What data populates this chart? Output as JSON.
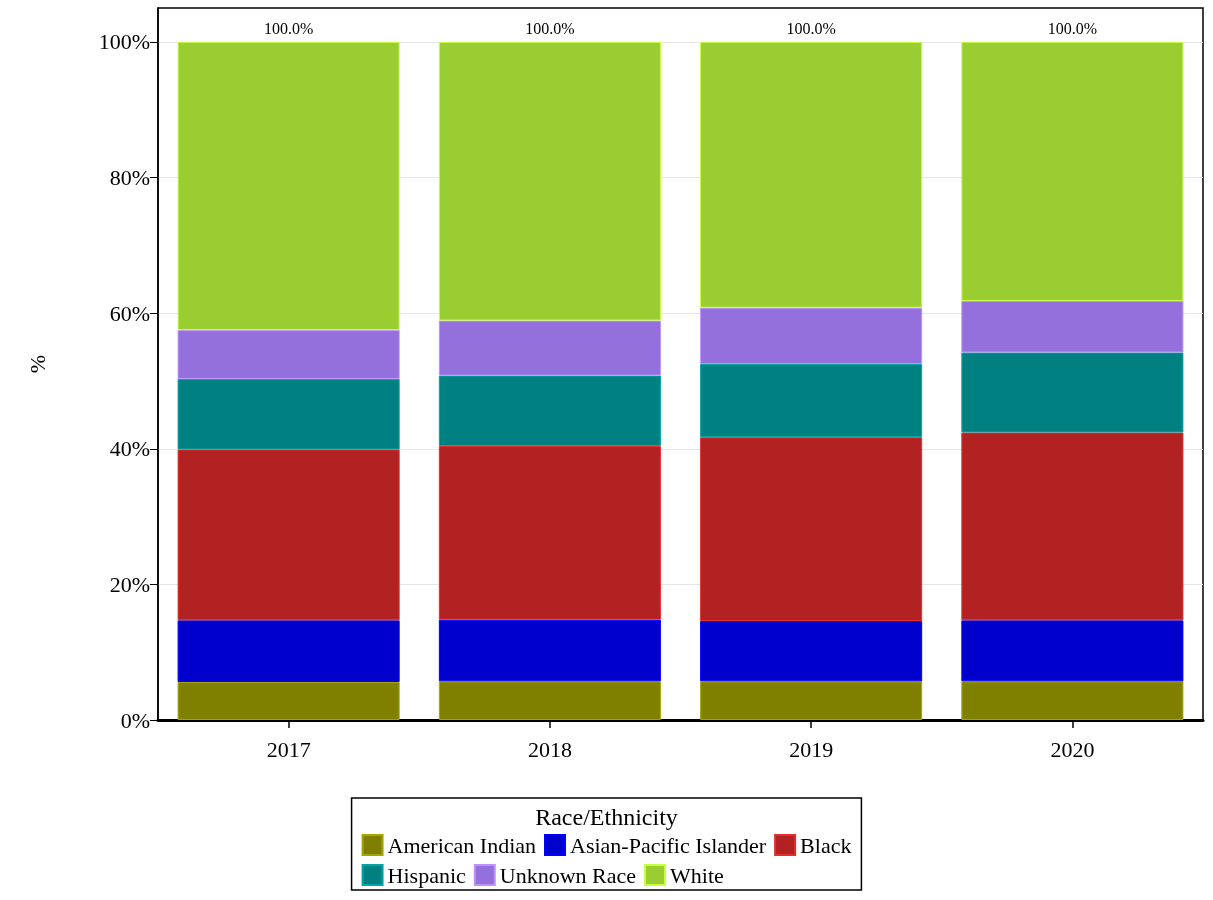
{
  "chart_data": {
    "type": "bar",
    "stacked": true,
    "ylabel": "%",
    "legend_title": "Race/Ethnicity",
    "legend": "bottom",
    "grid": "y",
    "categories": [
      "2017",
      "2018",
      "2019",
      "2020"
    ],
    "series": [
      {
        "name": "American Indian",
        "color": "#808000",
        "values": [
          5.6,
          5.7,
          5.7,
          5.7
        ]
      },
      {
        "name": "Asian-Pacific Islander",
        "color": "#0000cd",
        "values": [
          9.1,
          9.1,
          8.9,
          9.0
        ]
      },
      {
        "name": "Black",
        "color": "#b22222",
        "values": [
          25.2,
          25.6,
          27.1,
          27.7
        ]
      },
      {
        "name": "Hispanic",
        "color": "#008080",
        "values": [
          10.4,
          10.4,
          10.8,
          11.8
        ]
      },
      {
        "name": "Unknown Race",
        "color": "#9370db",
        "values": [
          7.2,
          8.1,
          8.3,
          7.6
        ]
      },
      {
        "name": "White",
        "color": "#9acd32",
        "values": [
          42.5,
          41.1,
          39.2,
          38.2
        ]
      }
    ],
    "totals": [
      "100.0%",
      "100.0%",
      "100.0%",
      "100.0%"
    ],
    "ylim": [
      0,
      105
    ],
    "yticks": [
      {
        "value": 0,
        "label": "0%"
      },
      {
        "value": 20,
        "label": "20%"
      },
      {
        "value": 40,
        "label": "40%"
      },
      {
        "value": 60,
        "label": "60%"
      },
      {
        "value": 80,
        "label": "80%"
      },
      {
        "value": 100,
        "label": "100%"
      }
    ]
  }
}
